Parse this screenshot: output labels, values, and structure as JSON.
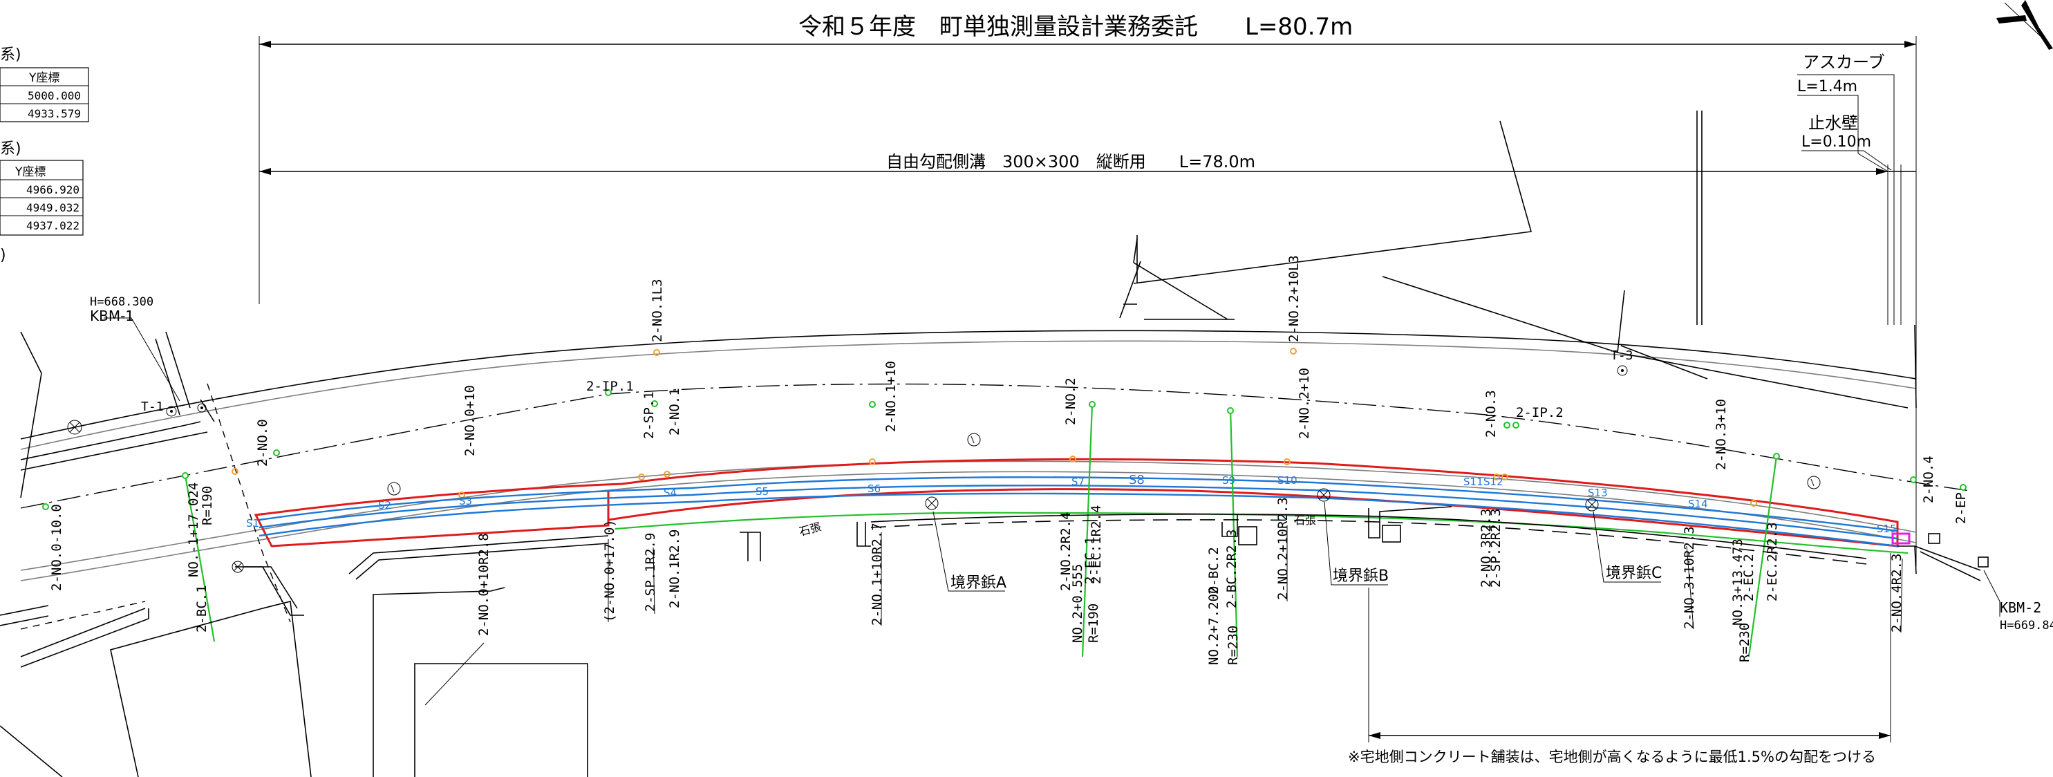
{
  "title": "令和５年度　町単独測量設計業務委託　　L=80.7m",
  "dimensions": {
    "side_ditch": "自由勾配側溝　300×300　縦断用　　L=78.0m",
    "asphalt_curb_name": "アスカーブ",
    "asphalt_curb_length": "L=1.4m",
    "cutoff_wall_name": "止水壁",
    "cutoff_wall_length": "L=0.10m"
  },
  "coord_tables": {
    "table1_suffix": "系)",
    "table1_header": "Y座標",
    "table1_rows": [
      "5000.000",
      "4933.579"
    ],
    "table2_suffix": "系)",
    "table2_header": "Y座標",
    "table2_rows": [
      "4966.920",
      "4949.032",
      "4937.022"
    ],
    "table3_suffix": ")"
  },
  "benchmarks": {
    "kbm1_height": "H=668.300",
    "kbm1_name": "KBM-1",
    "kbm2_name": "KBM-2",
    "kbm2_height": "H=669.84"
  },
  "traverse": {
    "t1": "T-1",
    "t3": "T-3",
    "ip1": "2-IP.1",
    "ip2": "2-IP.2"
  },
  "stations": {
    "s1": "S1",
    "s2": "S2",
    "s3": "S3",
    "s4": "S4",
    "s5": "S5",
    "s6": "S6",
    "s7": "S7",
    "s8": "S8",
    "s9": "S9",
    "s10": "S10",
    "s11": "S11",
    "s12": "S12",
    "s13": "S13",
    "s14": "S14",
    "s15": "S15"
  },
  "upper_labels": {
    "no1l3": "2-NO.1L3",
    "no2p10l3": "2-NO.2+10L3",
    "no0": "2-NO.0",
    "no0p10": "2-NO.0+10",
    "sp1": "2-SP.1",
    "no1": "2-NO.1",
    "no1p10": "2-NO.1+10",
    "no2": "2-NO.2",
    "no2p10": "2-NO.2+10",
    "no3": "2-NO.3",
    "no3p10": "2-NO.3+10",
    "no4": "2-NO.4",
    "ep": "2-EP"
  },
  "lower_labels": {
    "no0m10": "2-NO.0-10.0",
    "no1p17": "NO.-1+17.024",
    "r190a": "R=190",
    "bc1": "2-BC.1",
    "no0p10r": "2-NO.0+10R2.8",
    "no0p17": "(2-NO.0+17.0)",
    "sp1r": "2-SP.1R2.9",
    "no1r": "2-NO.1R2.9",
    "no1p10r": "2-NO.1+10R2.7",
    "no2r": "2-NO.2R2.4",
    "ec1": "2-EC.1",
    "ec1r": "2-EC.1R2.4",
    "no2p0": "NO.2+0.555",
    "r190b": "R=190",
    "bc2": "2-BC.2",
    "bc2r": "2-BC.2R2.3",
    "no2p7": "NO.2+7.200",
    "r230a": "R=230",
    "no2p10r": "2-NO.2+10R2.3",
    "no3r": "2-NO.3R2.3",
    "sp2r": "2-SP.2R2.3",
    "no3p10r": "2-NO.3+10R2.3",
    "no3p13": "NO.3+13.473",
    "ec2": "2-EC.2",
    "ec2r": "2-EC.2R2.3",
    "r230b": "R=230",
    "no4r": "2-NO.4R2.3"
  },
  "boundary_markers": {
    "a": "境界鋲A",
    "b": "境界鋲B",
    "c": "境界鋲C"
  },
  "stone_wall": "石張",
  "note": "※宅地側コンクリート舗装は、宅地側が高くなるように最低1.5%の勾配をつける",
  "colors": {
    "red_outline": "#e01b1b",
    "blue_ditch": "#1e78d7",
    "green_line": "#22c02a",
    "orange_point": "#f0a030",
    "magenta_curb": "#e020e0",
    "gray_road": "#7d7d7d"
  }
}
